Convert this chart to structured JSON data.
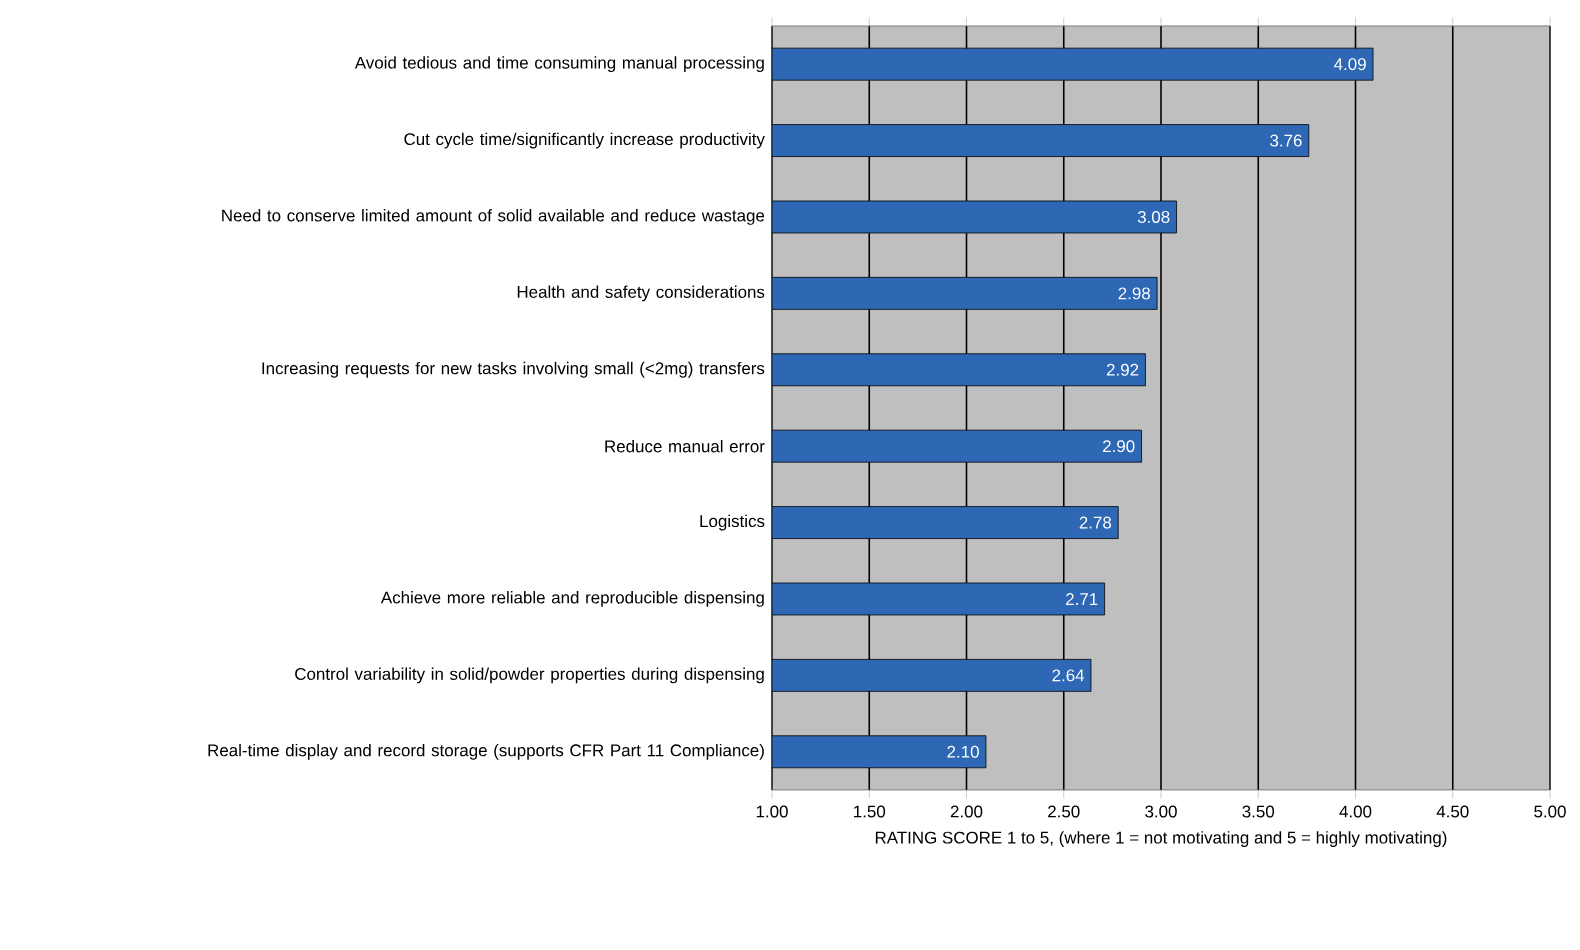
{
  "chart_data": {
    "type": "bar",
    "orientation": "horizontal",
    "categories": [
      "Avoid tedious and time consuming manual processing",
      "Cut cycle time/significantly increase productivity",
      "Need to conserve limited amount of solid available and reduce wastage",
      "Health and safety considerations",
      "Increasing requests for new tasks involving small (<2mg) transfers",
      "Reduce manual error",
      "Logistics",
      "Achieve more reliable and reproducible dispensing",
      "Control variability in solid/powder properties during dispensing",
      "Real-time display and record storage (supports CFR Part 11 Compliance)"
    ],
    "values": [
      4.09,
      3.76,
      3.08,
      2.98,
      2.92,
      2.9,
      2.78,
      2.71,
      2.64,
      2.1
    ],
    "value_labels": [
      "4.09",
      "3.76",
      "3.08",
      "2.98",
      "2.92",
      "2.90",
      "2.78",
      "2.71",
      "2.64",
      "2.10"
    ],
    "color": "#2e68b4",
    "xlabel": "RATING SCORE 1 to 5, (where 1 = not motivating and 5 = highly motivating)",
    "xlim": [
      1,
      5
    ],
    "xticks": [
      {
        "value": 1,
        "label": "1.00"
      },
      {
        "value": 1.5,
        "label": "1.50"
      },
      {
        "value": 2,
        "label": "2.00"
      },
      {
        "value": 2.5,
        "label": "2.50"
      },
      {
        "value": 3,
        "label": "3.00"
      },
      {
        "value": 3.5,
        "label": "3.50"
      },
      {
        "value": 4,
        "label": "4.00"
      },
      {
        "value": 4.5,
        "label": "4.50"
      },
      {
        "value": 5,
        "label": "5.00"
      }
    ],
    "grid": "x"
  }
}
